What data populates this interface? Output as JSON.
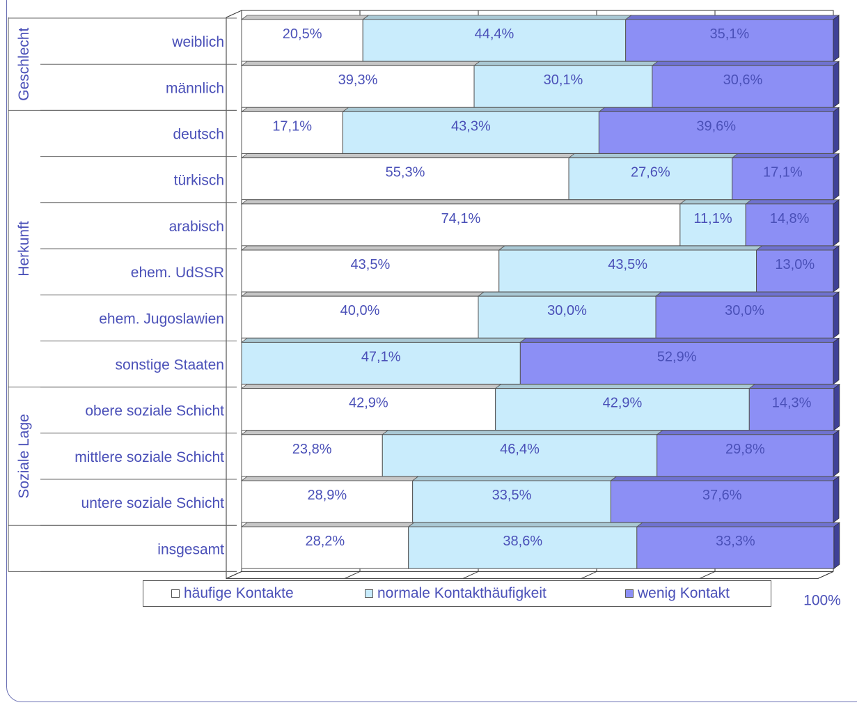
{
  "chart_data": {
    "type": "bar",
    "orientation": "horizontal",
    "stacked": "percent",
    "categories": [
      "weiblich",
      "männlich",
      "deutsch",
      "türkisch",
      "arabisch",
      "ehem. UdSSR",
      "ehem. Jugoslawien",
      "sonstige Staaten",
      "obere soziale Schicht",
      "mittlere soziale Schicht",
      "untere soziale Schicht",
      "insgesamt"
    ],
    "groups": [
      {
        "label": "Geschlecht",
        "categories": [
          "weiblich",
          "männlich"
        ]
      },
      {
        "label": "Herkunft",
        "categories": [
          "deutsch",
          "türkisch",
          "arabisch",
          "ehem. UdSSR",
          "ehem. Jugoslawien",
          "sonstige Staaten"
        ]
      },
      {
        "label": "Soziale Lage",
        "categories": [
          "obere soziale Schicht",
          "mittlere soziale Schicht",
          "untere soziale Schicht"
        ]
      }
    ],
    "series": [
      {
        "name": "häufige Kontakte",
        "color": "#ffffff",
        "values": [
          20.5,
          39.3,
          17.1,
          55.3,
          74.1,
          43.5,
          40.0,
          0,
          42.9,
          23.8,
          28.9,
          28.2
        ],
        "labels": [
          "20,5%",
          "39,3%",
          "17,1%",
          "55,3%",
          "74,1%",
          "43,5%",
          "40,0%",
          "",
          "42,9%",
          "23,8%",
          "28,9%",
          "28,2%"
        ]
      },
      {
        "name": "normale Kontakthäufigkeit",
        "color": "#c9ecfc",
        "values": [
          44.4,
          30.1,
          43.3,
          27.6,
          11.1,
          43.5,
          30.0,
          47.1,
          42.9,
          46.4,
          33.5,
          38.6
        ],
        "labels": [
          "44,4%",
          "30,1%",
          "43,3%",
          "27,6%",
          "11,1%",
          "43,5%",
          "30,0%",
          "47,1%",
          "42,9%",
          "46,4%",
          "33,5%",
          "38,6%"
        ]
      },
      {
        "name": "wenig Kontakt",
        "color": "#8c8ff5",
        "values": [
          35.1,
          30.6,
          39.6,
          17.1,
          14.8,
          13.0,
          30.0,
          52.9,
          14.3,
          29.8,
          37.6,
          33.3
        ],
        "labels": [
          "35,1%",
          "30,6%",
          "39,6%",
          "17,1%",
          "14,8%",
          "13,0%",
          "30,0%",
          "52,9%",
          "14,3%",
          "29,8%",
          "37,6%",
          "33,3%"
        ]
      }
    ],
    "xlim": [
      0,
      100
    ],
    "xticks": [
      "0%",
      "20%",
      "40%",
      "60%",
      "80%",
      "100%"
    ],
    "legend_position": "bottom",
    "grid": true
  }
}
